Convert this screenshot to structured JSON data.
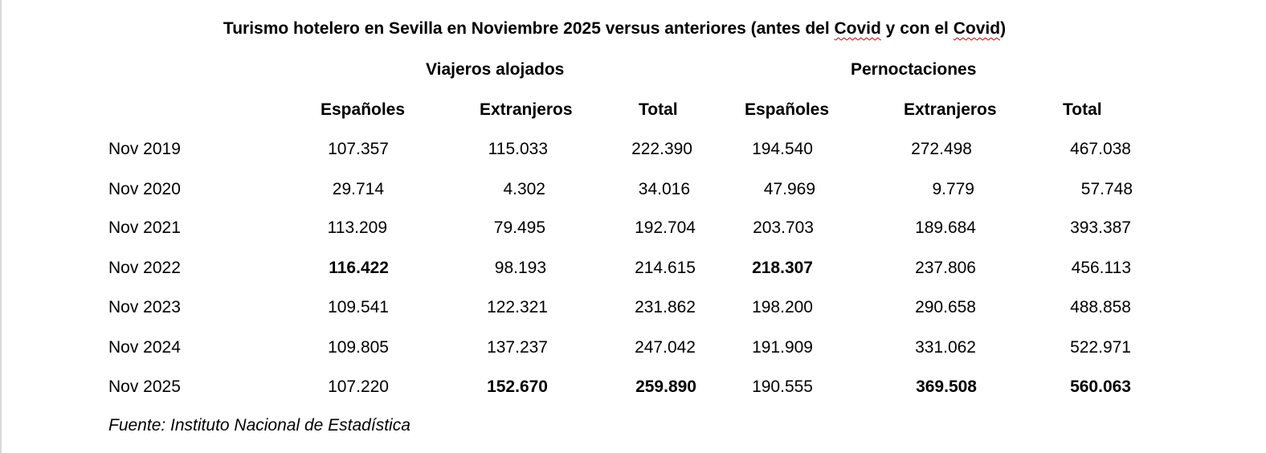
{
  "title": {
    "prefix": "Turismo hotelero en Sevilla en Noviembre 2025 versus anteriores (antes del ",
    "covid_word_1": "Covid",
    "middle": " y con el ",
    "covid_word_2": "Covid",
    "suffix": ")"
  },
  "groups": {
    "viajeros": "Viajeros alojados",
    "pernoctaciones": "Pernoctaciones"
  },
  "columns": {
    "v_espanoles": "Españoles",
    "v_extranjeros": "Extranjeros",
    "v_total": "Total",
    "p_espanoles": "Españoles",
    "p_extranjeros": "Extranjeros",
    "p_total": "Total"
  },
  "rows": [
    {
      "label": "Nov 2019",
      "v_esp": "107.357",
      "v_ext": "115.033",
      "v_tot": "222.390",
      "p_esp": "194.540",
      "p_ext": "272.498",
      "p_tot": "467.038"
    },
    {
      "label": "Nov 2020",
      "v_esp": "29.714",
      "v_ext": "4.302",
      "v_tot": "34.016",
      "p_esp": "47.969",
      "p_ext": "9.779",
      "p_tot": "57.748"
    },
    {
      "label": "Nov 2021",
      "v_esp": "113.209",
      "v_ext": "79.495",
      "v_tot": "192.704",
      "p_esp": "203.703",
      "p_ext": "189.684",
      "p_tot": "393.387"
    },
    {
      "label": "Nov 2022",
      "v_esp": "116.422",
      "v_ext": "98.193",
      "v_tot": "214.615",
      "p_esp": "218.307",
      "p_ext": "237.806",
      "p_tot": "456.113"
    },
    {
      "label": "Nov 2023",
      "v_esp": "109.541",
      "v_ext": "122.321",
      "v_tot": "231.862",
      "p_esp": "198.200",
      "p_ext": "290.658",
      "p_tot": "488.858"
    },
    {
      "label": "Nov 2024",
      "v_esp": "109.805",
      "v_ext": "137.237",
      "v_tot": "247.042",
      "p_esp": "191.909",
      "p_ext": "331.062",
      "p_tot": "522.971"
    },
    {
      "label": "Nov 2025",
      "v_esp": "107.220",
      "v_ext": "152.670",
      "v_tot": "259.890",
      "p_esp": "190.555",
      "p_ext": "369.508",
      "p_tot": "560.063"
    }
  ],
  "source": "Fuente: Instituto Nacional de Estadística"
}
